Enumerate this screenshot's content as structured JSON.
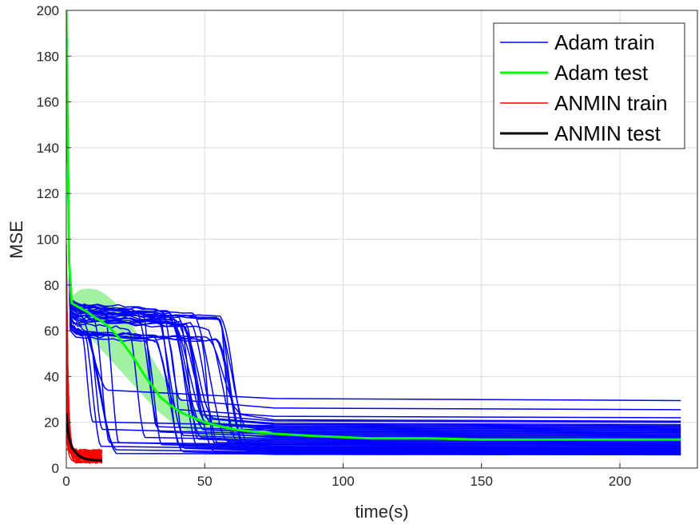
{
  "chart_data": {
    "type": "line",
    "xlabel": "time(s)",
    "ylabel": "MSE",
    "xlim": [
      0,
      228
    ],
    "ylim": [
      0,
      200
    ],
    "xticks": [
      0,
      50,
      100,
      150,
      200
    ],
    "yticks": [
      0,
      20,
      40,
      60,
      80,
      100,
      120,
      140,
      160,
      180,
      200
    ],
    "grid": true,
    "legend_position": "top-right",
    "legend": [
      {
        "label": "Adam train",
        "color": "#0000FF",
        "width": 1.5
      },
      {
        "label": "Adam test",
        "color": "#00FF00",
        "width": 3
      },
      {
        "label": "ANMIN train",
        "color": "#FF0000",
        "width": 1.5
      },
      {
        "label": "ANMIN test",
        "color": "#000000",
        "width": 3
      }
    ],
    "series": [
      {
        "name": "Adam test",
        "color": "#00FF00",
        "x": [
          0,
          0.5,
          1,
          2,
          5,
          8,
          10,
          13,
          16,
          19,
          22,
          25,
          28,
          31,
          34,
          38,
          42,
          46,
          50,
          55,
          60,
          67,
          75,
          90,
          110,
          130,
          150,
          170,
          190,
          210,
          222
        ],
        "y": [
          200,
          150,
          90,
          72,
          70,
          68,
          66,
          64,
          61,
          57,
          52,
          47,
          41,
          36,
          31,
          27,
          24,
          22,
          20,
          18.5,
          17,
          16,
          15,
          14,
          13,
          13,
          12.5,
          12.5,
          12.5,
          12.5,
          12.5
        ]
      },
      {
        "name": "ANMIN test",
        "color": "#000000",
        "x": [
          0,
          0.3,
          0.6,
          1,
          1.5,
          2,
          3,
          4,
          5,
          6,
          7,
          8,
          10,
          12,
          13
        ],
        "y": [
          24,
          20,
          16,
          13,
          11,
          9,
          7.5,
          6,
          5,
          4.5,
          4,
          3.8,
          3.5,
          3.4,
          3.3
        ]
      }
    ],
    "bands": [
      {
        "name": "Adam test spread",
        "color": "#90EE90",
        "x": [
          1,
          3,
          5,
          8,
          11,
          14,
          17,
          20,
          23,
          26,
          29,
          32,
          35,
          38,
          41,
          44,
          47,
          50,
          55,
          60,
          67,
          75,
          100,
          150,
          200,
          222
        ],
        "upper": [
          73,
          76,
          78,
          78.5,
          78,
          76,
          73,
          69,
          64,
          58,
          52,
          46,
          40,
          35,
          31,
          28,
          26,
          24,
          22,
          20.5,
          19,
          18,
          17.5,
          17,
          17,
          17
        ],
        "lower": [
          70,
          66,
          62,
          58,
          54,
          50,
          46,
          42,
          38,
          34,
          30,
          26,
          23,
          20,
          18,
          16,
          15,
          14,
          12.5,
          11.5,
          10.5,
          9.5,
          9,
          8.5,
          8.5,
          8.5
        ]
      }
    ],
    "runs": [
      {
        "group": "Adam train",
        "color": "#0000FF",
        "count": 40,
        "x_end": 222,
        "drop_time_range": [
          4,
          57
        ],
        "plateau_range": [
          58,
          73
        ],
        "final_values": [
          29.5,
          25.5,
          22,
          20.5,
          20,
          19,
          18.5,
          18,
          17.5,
          17,
          16.5,
          16,
          15.5,
          15,
          14.5,
          14,
          13.5,
          13,
          12.5,
          12,
          11.5,
          11,
          10.5,
          10.2,
          10,
          9.5,
          9,
          8.8,
          8.5,
          8.2,
          8,
          7.8,
          7.5,
          7.2,
          7,
          6.8,
          6.5,
          6.2,
          6,
          5.8
        ]
      },
      {
        "group": "ANMIN train",
        "color": "#FF0000",
        "count": 30,
        "x_end": 13,
        "start_range": [
          8,
          100
        ],
        "final_range": [
          2,
          8
        ]
      }
    ]
  }
}
